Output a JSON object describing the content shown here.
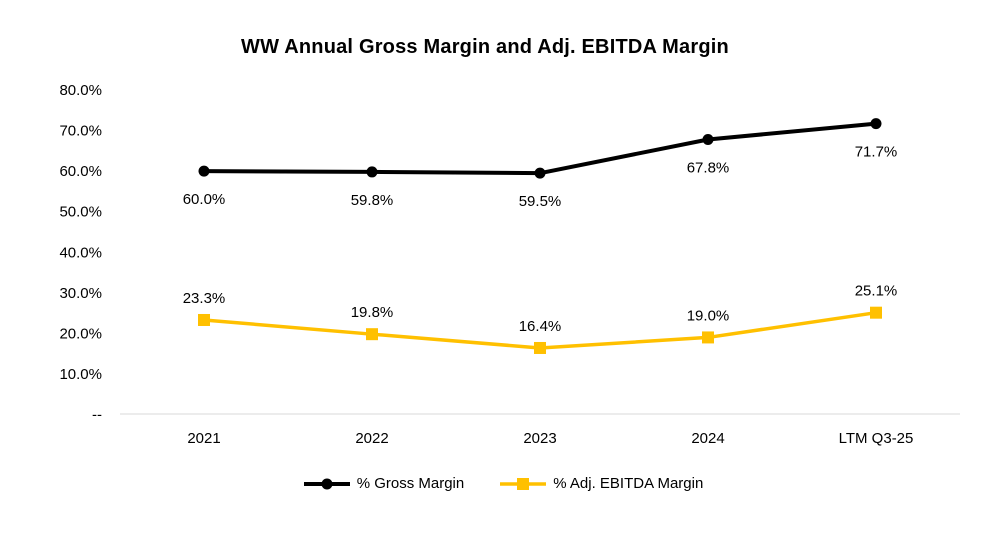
{
  "chart_data": {
    "type": "line",
    "title": "WW Annual Gross Margin and Adj. EBITDA Margin",
    "categories": [
      "2021",
      "2022",
      "2023",
      "2024",
      "LTM Q3-25"
    ],
    "series": [
      {
        "name": "% Gross Margin",
        "values": [
          60.0,
          59.8,
          59.5,
          67.8,
          71.7
        ],
        "data_labels": [
          "60.0%",
          "59.8%",
          "59.5%",
          "67.8%",
          "71.7%"
        ],
        "color": "#000000",
        "marker": "circle",
        "line_width": 4,
        "label_position": "below"
      },
      {
        "name": "% Adj. EBITDA Margin",
        "values": [
          23.3,
          19.8,
          16.4,
          19.0,
          25.1
        ],
        "data_labels": [
          "23.3%",
          "19.8%",
          "16.4%",
          "19.0%",
          "25.1%"
        ],
        "color": "#FFC000",
        "marker": "square",
        "line_width": 3.5,
        "label_position": "above"
      }
    ],
    "y_axis": {
      "min": 0,
      "max": 80,
      "tick_values": [
        80,
        70,
        60,
        50,
        40,
        30,
        20,
        10,
        0
      ],
      "tick_labels": [
        "80.0%",
        "70.0%",
        "60.0%",
        "50.0%",
        "40.0%",
        "30.0%",
        "20.0%",
        "10.0%",
        "--"
      ]
    },
    "grid": false,
    "legend_position": "bottom",
    "colors": {
      "axis_line": "#D9D9D9",
      "text": "#000000",
      "background": "#FFFFFF"
    }
  }
}
